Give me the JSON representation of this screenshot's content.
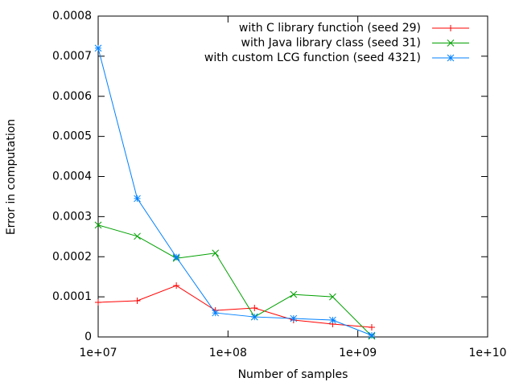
{
  "chart_data": {
    "type": "line",
    "xlabel": "Number of samples",
    "ylabel": "Error in computation",
    "xscale": "log",
    "legend": "top-right",
    "x": [
      10000000,
      20000000,
      40000000,
      80000000,
      160000000,
      320000000,
      640000000,
      1280000000
    ],
    "series": [
      {
        "name": "with C library function (seed 29)",
        "color": "#ff0000",
        "marker": "plus",
        "values": [
          8.62e-05,
          9.02e-05,
          0.000128,
          6.62e-05,
          7.22e-05,
          4.21e-05,
          3.21e-05,
          2.41e-05
        ]
      },
      {
        "name": "with Java library class (seed 31)",
        "color": "#00a000",
        "marker": "cross",
        "values": [
          0.000279,
          0.000251,
          0.000196,
          0.000209,
          5e-05,
          0.000106,
          0.0001,
          2e-06
        ]
      },
      {
        "name": "with custom LCG function (seed 4321)",
        "color": "#0080ff",
        "marker": "star",
        "values": [
          0.00072,
          0.000345,
          0.000199,
          6e-05,
          5e-05,
          4.6e-05,
          4.2e-05,
          4e-06
        ]
      }
    ],
    "xlim": [
      10000000,
      10000000000
    ],
    "xticks": [
      {
        "value": 10000000,
        "label": "1e+07"
      },
      {
        "value": 100000000,
        "label": "1e+08"
      },
      {
        "value": 1000000000,
        "label": "1e+09"
      },
      {
        "value": 10000000000,
        "label": "1e+10"
      }
    ],
    "ylim": [
      0,
      0.0008
    ],
    "yticks": [
      0,
      0.0001,
      0.0002,
      0.0003,
      0.0004,
      0.0005,
      0.0006,
      0.0007,
      0.0008
    ]
  }
}
